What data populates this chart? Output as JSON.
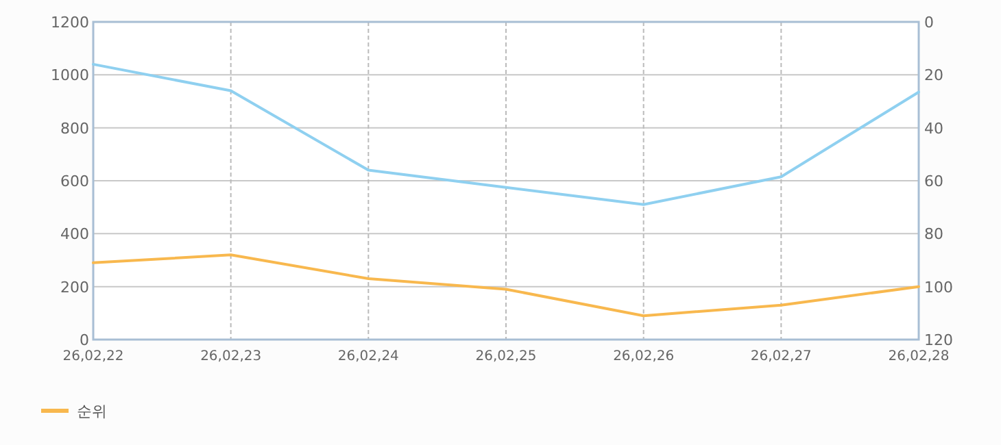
{
  "chart_data": {
    "type": "line",
    "categories": [
      "26,02,22",
      "26,02,23",
      "26,02,24",
      "26,02,25",
      "26,02,26",
      "26,02,27",
      "26,02,28"
    ],
    "series": [
      {
        "color": "#8fd0f0",
        "values": [
          1040,
          940,
          640,
          575,
          510,
          615,
          935
        ]
      },
      {
        "name": "순위",
        "color": "#f8b84e",
        "axis": "y2",
        "values": [
          91,
          88,
          97,
          101,
          111,
          107,
          100
        ]
      }
    ],
    "ylim": [
      0,
      1200
    ],
    "yticks": [
      0,
      200,
      400,
      600,
      800,
      1000,
      1200
    ],
    "y2lim": [
      120,
      0
    ],
    "y2ticks": [
      0,
      20,
      40,
      60,
      80,
      100,
      120
    ],
    "grid": true,
    "legend": "bottom left",
    "marker": "none",
    "line_style": "solid"
  }
}
